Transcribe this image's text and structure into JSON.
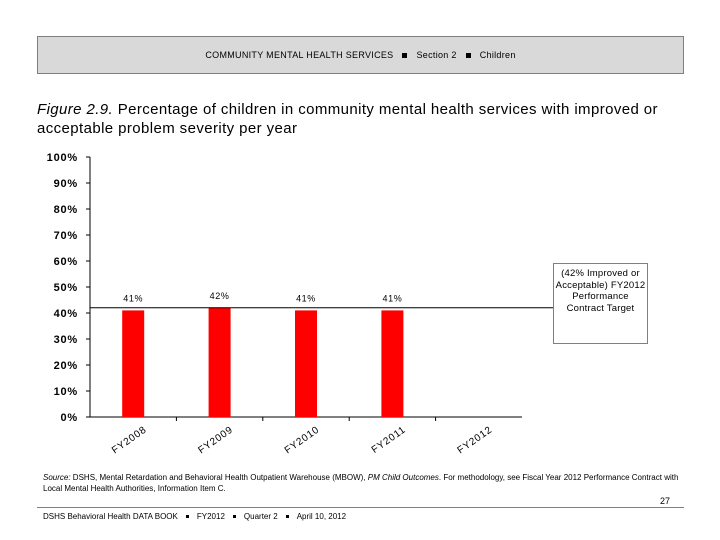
{
  "header": {
    "section_title": "COMMUNITY MENTAL HEALTH SERVICES",
    "section": "Section 2",
    "topic": "Children"
  },
  "figure": {
    "label": "Figure 2.9.",
    "title": "Percentage of children in community mental health services with improved or acceptable problem severity per year"
  },
  "chart_data": {
    "type": "bar",
    "categories": [
      "FY2008",
      "FY2009",
      "FY2010",
      "FY2011",
      "FY2012"
    ],
    "values": [
      41,
      42,
      41,
      41,
      null
    ],
    "data_labels": [
      "41%",
      "42%",
      "41%",
      "41%",
      ""
    ],
    "ylim": [
      0,
      100
    ],
    "yticks": [
      "0%",
      "10%",
      "20%",
      "30%",
      "40%",
      "50%",
      "60%",
      "70%",
      "80%",
      "90%",
      "100%"
    ],
    "target_value": 42,
    "target_label": "(42% Improved or Acceptable) FY2012 Performance Contract Target",
    "bar_color": "#ff0000",
    "target_line_color": "#000000",
    "grid": false
  },
  "source": {
    "label": "Source:",
    "text_before": " DSHS, Mental Retardation and Behavioral Health Outpatient Warehouse (MBOW), ",
    "italic": "PM Child Outcomes",
    "text_after": ". For methodology, see Fiscal Year 2012 Performance Contract with Local Mental Health Authorities, Information Item C."
  },
  "page_number": "27",
  "footer": {
    "publication": "DSHS Behavioral Health DATA BOOK",
    "fiscal_year": "FY2012",
    "quarter": "Quarter 2",
    "date": "April 10, 2012"
  }
}
